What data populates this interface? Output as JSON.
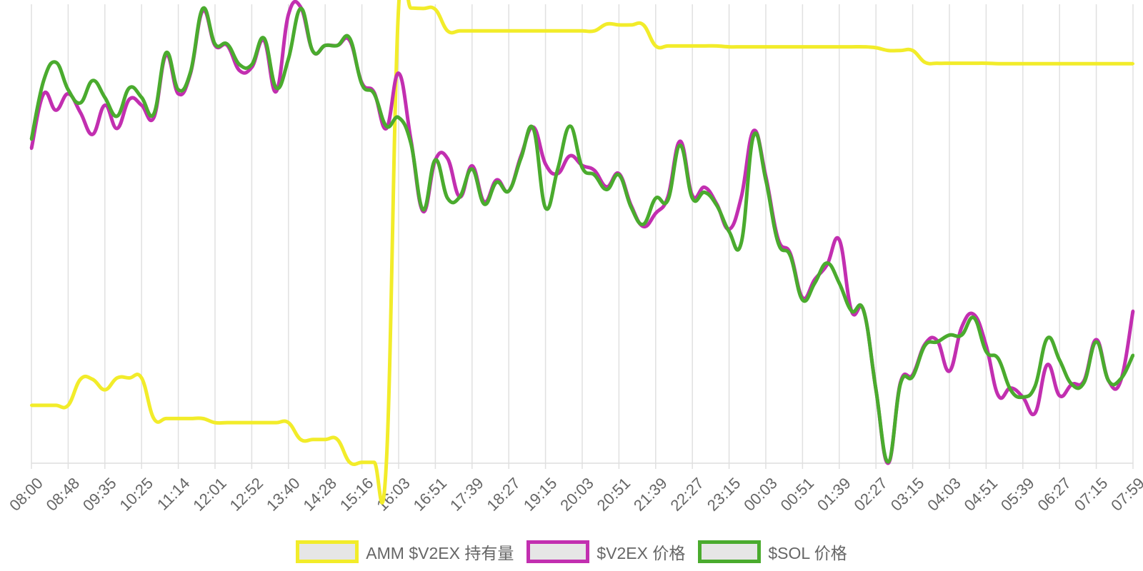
{
  "chart_data": {
    "type": "line",
    "categories": [
      "08:00",
      null,
      null,
      "08:48",
      null,
      null,
      "09:35",
      null,
      null,
      "10:25",
      null,
      null,
      "11:14",
      null,
      null,
      "12:01",
      null,
      null,
      "12:52",
      null,
      null,
      "13:40",
      null,
      null,
      "14:28",
      null,
      null,
      "15:16",
      null,
      null,
      "16:03",
      null,
      null,
      "16:51",
      null,
      null,
      "17:39",
      null,
      null,
      "18:27",
      null,
      null,
      "19:15",
      null,
      null,
      "20:03",
      null,
      null,
      "20:51",
      null,
      null,
      "21:39",
      null,
      null,
      "22:27",
      null,
      null,
      "23:15",
      null,
      null,
      "00:03",
      null,
      null,
      "00:51",
      null,
      null,
      "01:39",
      null,
      null,
      "02:27",
      null,
      null,
      "03:15",
      null,
      null,
      "04:03",
      null,
      null,
      "04:51",
      null,
      null,
      "05:39",
      null,
      null,
      "06:27",
      null,
      null,
      "07:15",
      null,
      null,
      "07:59"
    ],
    "ylim": [
      0,
      100
    ],
    "grid": true,
    "legend": "bottom",
    "series": [
      {
        "name": "AMM $V2EX 持有量",
        "color": "#f2ec2a",
        "values": [
          12.7,
          12.7,
          12.7,
          12.7,
          18.4,
          18.4,
          16.1,
          18.7,
          18.7,
          18.7,
          9.8,
          9.8,
          9.8,
          9.8,
          9.8,
          8.9,
          8.9,
          8.9,
          8.9,
          8.9,
          8.9,
          8.9,
          5.2,
          5.2,
          5.2,
          5.2,
          0.2,
          0.2,
          0.2,
          0.2,
          100,
          99.8,
          99.7,
          99.5,
          94.8,
          94.8,
          94.8,
          94.8,
          94.8,
          94.8,
          94.8,
          94.8,
          94.8,
          94.8,
          94.8,
          94.8,
          94.8,
          96.3,
          96.1,
          96.1,
          96.1,
          91.5,
          91.5,
          91.5,
          91.5,
          91.5,
          91.5,
          91.3,
          91.3,
          91.3,
          91.3,
          91.3,
          91.3,
          91.3,
          91.3,
          91.3,
          91.3,
          91.3,
          91.3,
          91.1,
          90.5,
          90.5,
          90.5,
          87.9,
          87.7,
          87.7,
          87.7,
          87.7,
          87.7,
          87.6,
          87.6,
          87.6,
          87.6,
          87.6,
          87.6,
          87.6,
          87.6,
          87.6,
          87.6,
          87.6,
          87.6
        ]
      },
      {
        "name": "$V2EX 价格",
        "color": "#c22fb0",
        "values": [
          69.0,
          81.0,
          77.4,
          81.0,
          76.9,
          72.1,
          78.5,
          73.4,
          79.8,
          78.5,
          75.8,
          89.5,
          81.0,
          85.5,
          99.2,
          91.6,
          91.6,
          86.1,
          86.8,
          92.7,
          81.5,
          98.4,
          100,
          90.3,
          91.6,
          91.6,
          92.7,
          83.4,
          81.3,
          73.4,
          85.5,
          71.0,
          55.2,
          66.5,
          66.8,
          58.4,
          65.2,
          57.3,
          62.1,
          59.7,
          67.4,
          73.7,
          65.6,
          63.5,
          67.4,
          65.3,
          64.2,
          60.6,
          63.5,
          56.5,
          51.9,
          54.8,
          58.4,
          70.6,
          58.7,
          60.5,
          56.8,
          51.3,
          58.4,
          72.9,
          62.9,
          49.2,
          46.0,
          36.3,
          40.3,
          43.5,
          49.0,
          33.4,
          33.4,
          16.1,
          0,
          17.7,
          19.4,
          26.1,
          26.9,
          20.2,
          29.8,
          32.6,
          25.8,
          14.8,
          16.5,
          14.5,
          11.0,
          21.6,
          14.8,
          17.3,
          18.1,
          27.1,
          18.1,
          18.1,
          33.4
        ]
      },
      {
        "name": "$SOL 价格",
        "color": "#4aab2e",
        "values": [
          71.0,
          83.9,
          87.9,
          81.9,
          79.0,
          83.9,
          80.2,
          76.1,
          82.3,
          80.2,
          76.6,
          90.0,
          81.9,
          85.8,
          99.7,
          91.9,
          91.9,
          87.4,
          87.4,
          93.2,
          82.3,
          88.7,
          99.7,
          90.3,
          91.6,
          91.6,
          93.2,
          83.1,
          81.0,
          73.9,
          75.8,
          70.2,
          55.6,
          66.5,
          58.1,
          58.4,
          64.5,
          56.8,
          61.6,
          59.7,
          66.9,
          73.4,
          56.0,
          64.5,
          73.9,
          64.8,
          63.2,
          60.0,
          63.2,
          56.1,
          52.4,
          58.1,
          57.7,
          69.7,
          58.1,
          59.4,
          56.5,
          50.8,
          48.4,
          71.8,
          62.1,
          48.4,
          45.5,
          35.8,
          39.5,
          43.9,
          39.5,
          33.4,
          33.4,
          16.1,
          0.3,
          17.4,
          19.0,
          25.8,
          26.6,
          28.1,
          28.1,
          31.9,
          24.5,
          22.9,
          16.1,
          14.5,
          16.9,
          27.4,
          22.6,
          17.3,
          17.7,
          26.6,
          18.1,
          18.5,
          23.7
        ]
      }
    ]
  }
}
